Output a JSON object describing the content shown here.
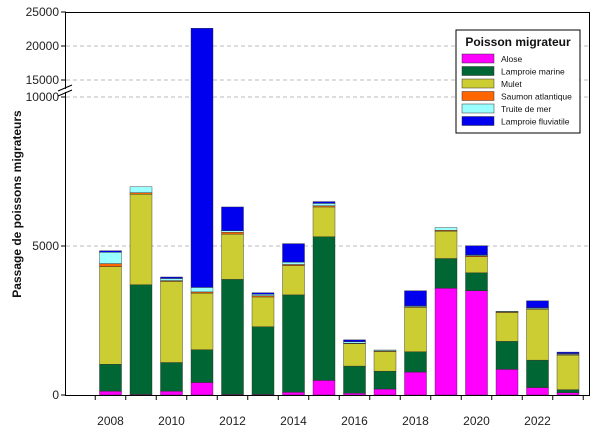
{
  "chart_data": {
    "type": "bar",
    "stacked": true,
    "ylabel": "Passage de poissons migrateurs",
    "xlabel": "",
    "ylim": [
      0,
      25000
    ],
    "y_axis_break": [
      10000,
      15000
    ],
    "grid": "horizontal-dashed",
    "legend_title": "Poisson migrateur",
    "legend_position": "top-right",
    "years": [
      2008,
      2009,
      2010,
      2011,
      2012,
      2013,
      2014,
      2015,
      2016,
      2017,
      2018,
      2019,
      2020,
      2021,
      2022,
      2023
    ],
    "x_tick_labels": [
      "2008",
      "2010",
      "2012",
      "2014",
      "2016",
      "2018",
      "2020",
      "2022"
    ],
    "y_tick_labels": [
      "0",
      "5000",
      "10000",
      "15000",
      "20000",
      "25000"
    ],
    "series": [
      {
        "name": "Alose",
        "color": "#ff00ff",
        "values": [
          130,
          20,
          130,
          420,
          20,
          20,
          90,
          490,
          60,
          200,
          770,
          3580,
          3500,
          860,
          250,
          80
        ]
      },
      {
        "name": "Lamproie marine",
        "color": "#006633",
        "values": [
          900,
          3680,
          960,
          1100,
          3860,
          2270,
          3270,
          4820,
          910,
          600,
          680,
          1000,
          600,
          940,
          920,
          100
        ]
      },
      {
        "name": "Mulet",
        "color": "#cccc33",
        "values": [
          3280,
          3040,
          2720,
          1900,
          1520,
          1000,
          980,
          1000,
          750,
          660,
          1490,
          920,
          540,
          970,
          1710,
          1160
        ]
      },
      {
        "name": "Saumon atlantique",
        "color": "#ff6600",
        "values": [
          100,
          50,
          30,
          40,
          60,
          40,
          40,
          40,
          20,
          20,
          20,
          30,
          30,
          20,
          20,
          20
        ]
      },
      {
        "name": "Truite de mer",
        "color": "#99ffff",
        "values": [
          380,
          200,
          70,
          150,
          50,
          50,
          80,
          80,
          50,
          30,
          30,
          90,
          30,
          20,
          30,
          30
        ]
      },
      {
        "name": "Lamproie fluviatile",
        "color": "#0000ee",
        "values": [
          50,
          0,
          50,
          19000,
          800,
          50,
          620,
          60,
          60,
          0,
          510,
          0,
          310,
          0,
          230,
          50
        ]
      }
    ]
  }
}
